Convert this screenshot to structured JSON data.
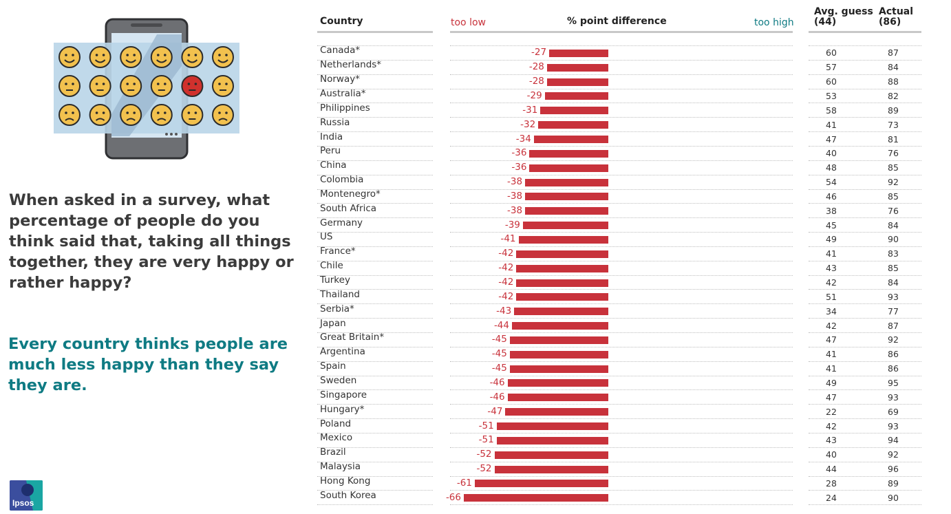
{
  "intro": {
    "question": "When asked in a survey, what percentage of people do you think said that, taking all things together, they are very happy or rather happy?",
    "answer": "Every country thinks people are much less happy than they say they are."
  },
  "logo": {
    "text": "Ipsos"
  },
  "colors": {
    "bar": "#c8323b",
    "too_low": "#c8323b",
    "too_high": "#0f7b83",
    "answer_text": "#0f7b83"
  },
  "table": {
    "headers": {
      "country": "Country",
      "too_low": "too low",
      "difference": "% point difference",
      "too_high": "too high",
      "avg_guess_line1": "Avg. guess",
      "avg_guess_line2": "(44)",
      "actual_line1": "Actual",
      "actual_line2": "(86)"
    }
  },
  "chart_data": {
    "type": "bar",
    "orientation": "horizontal",
    "categories": [
      "Canada*",
      "Netherlands*",
      "Norway*",
      "Australia*",
      "Philippines",
      "Russia",
      "India",
      "Peru",
      "China",
      "Colombia",
      "Montenegro*",
      "South Africa",
      "Germany",
      "US",
      "France*",
      "Chile",
      "Turkey",
      "Thailand",
      "Serbia*",
      "Japan",
      "Great Britain*",
      "Argentina",
      "Spain",
      "Sweden",
      "Singapore",
      "Hungary*",
      "Poland",
      "Mexico",
      "Brazil",
      "Malaysia",
      "Hong Kong",
      "South Korea"
    ],
    "series": [
      {
        "name": "% point difference",
        "values": [
          -27,
          -28,
          -28,
          -29,
          -31,
          -32,
          -34,
          -36,
          -36,
          -38,
          -38,
          -38,
          -39,
          -41,
          -42,
          -42,
          -42,
          -42,
          -43,
          -44,
          -45,
          -45,
          -45,
          -46,
          -46,
          -47,
          -51,
          -51,
          -52,
          -52,
          -61,
          -66
        ]
      },
      {
        "name": "Avg. guess",
        "values": [
          60,
          57,
          60,
          53,
          58,
          41,
          47,
          40,
          48,
          54,
          46,
          38,
          45,
          49,
          41,
          43,
          42,
          51,
          34,
          42,
          47,
          41,
          41,
          49,
          47,
          22,
          42,
          43,
          40,
          44,
          28,
          24
        ]
      },
      {
        "name": "Actual",
        "values": [
          87,
          84,
          88,
          82,
          89,
          73,
          81,
          76,
          85,
          92,
          85,
          76,
          84,
          90,
          83,
          85,
          84,
          93,
          77,
          87,
          92,
          86,
          86,
          95,
          93,
          69,
          93,
          94,
          92,
          96,
          89,
          90
        ]
      }
    ],
    "title": "% point difference",
    "xlim": [
      -66,
      0
    ]
  }
}
